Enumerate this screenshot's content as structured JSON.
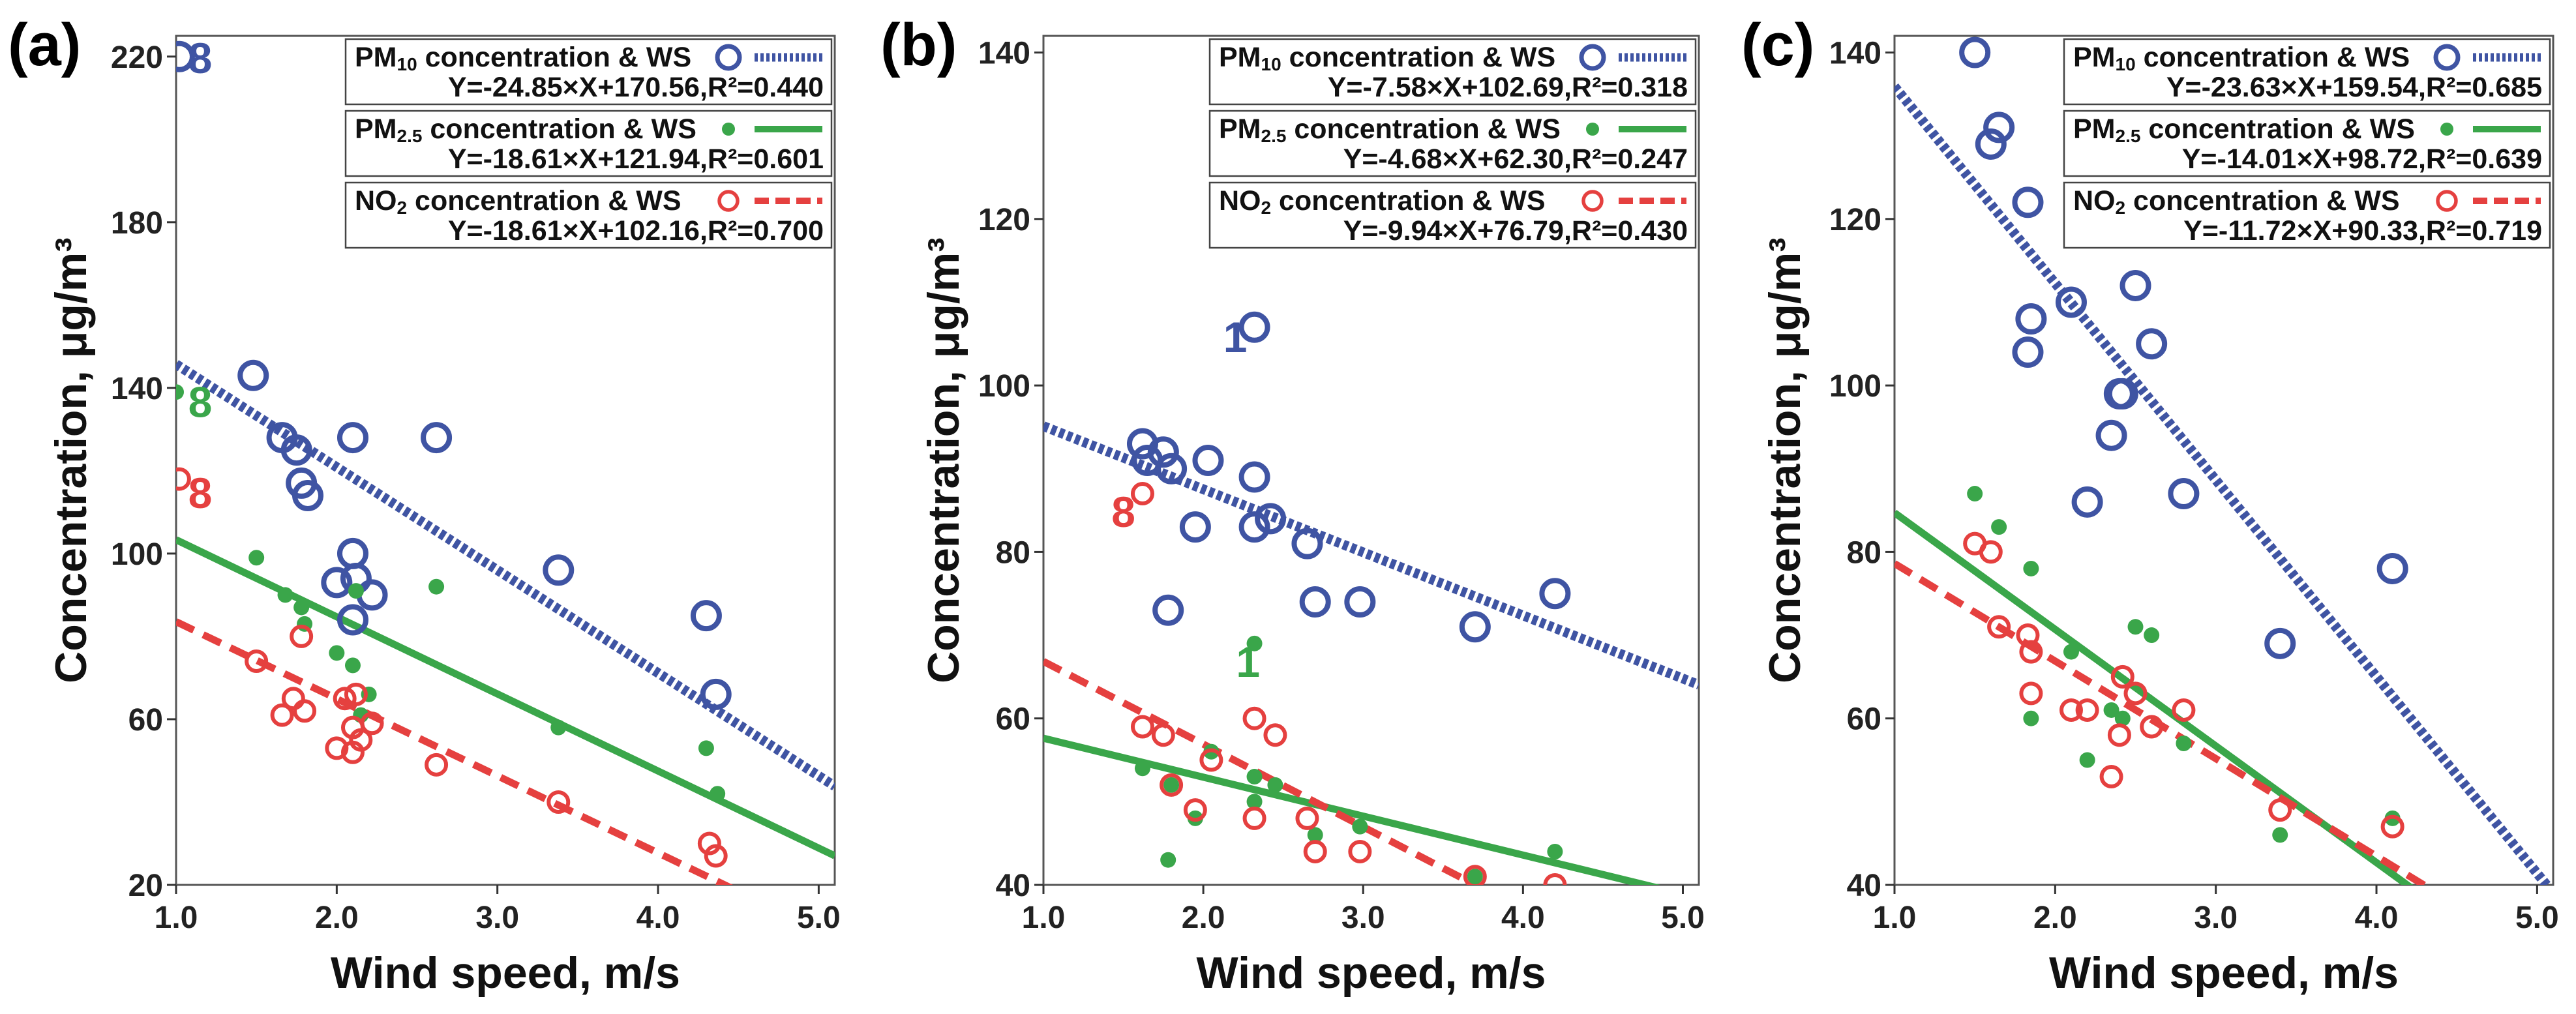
{
  "chart_data": [
    {
      "type": "scatter",
      "panel_label": "(a)",
      "xlabel": "Wind speed, m/s",
      "ylabel": "Concentration, μg/m³",
      "xlim": [
        1.0,
        5.1
      ],
      "ylim": [
        20,
        225
      ],
      "xticks": [
        1.0,
        2.0,
        3.0,
        4.0,
        5.0
      ],
      "xtick_labels": [
        "1.0",
        "2.0",
        "3.0",
        "4.0",
        "5.0"
      ],
      "yticks": [
        20,
        60,
        100,
        140,
        180,
        220
      ],
      "ytick_labels": [
        "20",
        "60",
        "100",
        "140",
        "180",
        "220"
      ],
      "grid": false,
      "legend_position": "top-right",
      "series": [
        {
          "name": "PM10",
          "legend_prefix": "PM",
          "legend_sub": "10",
          "legend_suffix": " concentration & WS",
          "equation": "Y=-24.85×X+170.56,R²=0.440",
          "marker": "open-circle",
          "line_style": "dotted",
          "color": "#3f54a3",
          "fit": {
            "slope": -24.85,
            "intercept": 170.56
          },
          "points": [
            [
              1.02,
              220
            ],
            [
              1.48,
              143
            ],
            [
              1.66,
              128
            ],
            [
              1.75,
              125
            ],
            [
              1.78,
              117
            ],
            [
              1.82,
              114
            ],
            [
              2.0,
              93
            ],
            [
              2.1,
              128
            ],
            [
              2.1,
              100
            ],
            [
              2.12,
              94
            ],
            [
              2.1,
              84
            ],
            [
              2.22,
              90
            ],
            [
              2.62,
              128
            ],
            [
              3.38,
              96
            ],
            [
              4.3,
              85
            ],
            [
              4.36,
              66
            ]
          ]
        },
        {
          "name": "PM2.5",
          "legend_prefix": "PM",
          "legend_sub": "2.5",
          "legend_suffix": " concentration & WS",
          "equation": "Y=-18.61×X+121.94,R²=0.601",
          "marker": "dot",
          "line_style": "solid",
          "color": "#3aa64a",
          "fit": {
            "slope": -18.61,
            "intercept": 121.94
          },
          "points": [
            [
              1.0,
              139
            ],
            [
              1.5,
              99
            ],
            [
              1.68,
              90
            ],
            [
              1.78,
              87
            ],
            [
              1.8,
              83
            ],
            [
              2.0,
              76
            ],
            [
              2.1,
              73
            ],
            [
              2.12,
              91
            ],
            [
              2.15,
              61
            ],
            [
              2.2,
              66
            ],
            [
              2.62,
              92
            ],
            [
              3.38,
              58
            ],
            [
              4.3,
              53
            ],
            [
              4.37,
              42
            ]
          ]
        },
        {
          "name": "NO2",
          "legend_prefix": "NO",
          "legend_sub": "2",
          "legend_suffix": " concentration & WS",
          "equation": "Y=-18.61×X+102.16,R²=0.700",
          "marker": "open-circle-small",
          "line_style": "dashed",
          "color": "#e5403f",
          "fit": {
            "slope": -18.61,
            "intercept": 102.16
          },
          "points": [
            [
              1.02,
              118
            ],
            [
              1.5,
              74
            ],
            [
              1.66,
              61
            ],
            [
              1.73,
              65
            ],
            [
              1.78,
              80
            ],
            [
              1.8,
              62
            ],
            [
              2.0,
              53
            ],
            [
              2.05,
              65
            ],
            [
              2.1,
              58
            ],
            [
              2.1,
              52
            ],
            [
              2.12,
              66
            ],
            [
              2.15,
              55
            ],
            [
              2.22,
              59
            ],
            [
              2.62,
              49
            ],
            [
              3.38,
              40
            ],
            [
              4.32,
              30
            ],
            [
              4.36,
              27
            ]
          ]
        }
      ],
      "annotations": [
        {
          "text": "8",
          "x": 1.15,
          "y": 216,
          "color": "#3f54a3"
        },
        {
          "text": "8",
          "x": 1.15,
          "y": 133,
          "color": "#3aa64a"
        },
        {
          "text": "8",
          "x": 1.15,
          "y": 111,
          "color": "#e5403f"
        }
      ]
    },
    {
      "type": "scatter",
      "panel_label": "(b)",
      "xlabel": "Wind speed, m/s",
      "ylabel": "Concentration, μg/m³",
      "xlim": [
        1.0,
        5.1
      ],
      "ylim": [
        40,
        142
      ],
      "xticks": [
        1.0,
        2.0,
        3.0,
        4.0,
        5.0
      ],
      "xtick_labels": [
        "1.0",
        "2.0",
        "3.0",
        "4.0",
        "5.0"
      ],
      "yticks": [
        40,
        60,
        80,
        100,
        120,
        140
      ],
      "ytick_labels": [
        "40",
        "60",
        "80",
        "100",
        "120",
        "140"
      ],
      "grid": false,
      "legend_position": "top-right",
      "series": [
        {
          "name": "PM10",
          "legend_prefix": "PM",
          "legend_sub": "10",
          "legend_suffix": " concentration & WS",
          "equation": "Y=-7.58×X+102.69,R²=0.318",
          "marker": "open-circle",
          "line_style": "dotted",
          "color": "#3f54a3",
          "fit": {
            "slope": -7.58,
            "intercept": 102.69
          },
          "points": [
            [
              1.62,
              93
            ],
            [
              1.65,
              91
            ],
            [
              1.75,
              92
            ],
            [
              1.8,
              90
            ],
            [
              1.78,
              73
            ],
            [
              1.95,
              83
            ],
            [
              2.03,
              91
            ],
            [
              2.32,
              107
            ],
            [
              2.32,
              89
            ],
            [
              2.32,
              83
            ],
            [
              2.42,
              84
            ],
            [
              2.65,
              81
            ],
            [
              2.7,
              74
            ],
            [
              2.98,
              74
            ],
            [
              3.7,
              71
            ],
            [
              4.2,
              75
            ]
          ]
        },
        {
          "name": "PM2.5",
          "legend_prefix": "PM",
          "legend_sub": "2.5",
          "legend_suffix": " concentration & WS",
          "equation": "Y=-4.68×X+62.30,R²=0.247",
          "marker": "dot",
          "line_style": "solid",
          "color": "#3aa64a",
          "fit": {
            "slope": -4.68,
            "intercept": 62.3
          },
          "points": [
            [
              1.62,
              54
            ],
            [
              1.78,
              43
            ],
            [
              1.8,
              52
            ],
            [
              1.95,
              48
            ],
            [
              2.05,
              56
            ],
            [
              2.32,
              69
            ],
            [
              2.32,
              53
            ],
            [
              2.32,
              50
            ],
            [
              2.45,
              52
            ],
            [
              2.7,
              46
            ],
            [
              2.98,
              47
            ],
            [
              3.7,
              41
            ],
            [
              4.2,
              44
            ]
          ]
        },
        {
          "name": "NO2",
          "legend_prefix": "NO",
          "legend_sub": "2",
          "legend_suffix": " concentration & WS",
          "equation": "Y=-9.94×X+76.79,R²=0.430",
          "marker": "open-circle-small",
          "line_style": "dashed",
          "color": "#e5403f",
          "fit": {
            "slope": -9.94,
            "intercept": 76.79
          },
          "points": [
            [
              1.62,
              87
            ],
            [
              1.62,
              59
            ],
            [
              1.75,
              58
            ],
            [
              1.8,
              52
            ],
            [
              1.95,
              49
            ],
            [
              2.05,
              55
            ],
            [
              2.32,
              60
            ],
            [
              2.32,
              48
            ],
            [
              2.45,
              58
            ],
            [
              2.65,
              48
            ],
            [
              2.7,
              44
            ],
            [
              2.98,
              44
            ],
            [
              3.7,
              41
            ],
            [
              4.2,
              40
            ]
          ]
        }
      ],
      "annotations": [
        {
          "text": "1",
          "x": 2.2,
          "y": 104,
          "color": "#3f54a3"
        },
        {
          "text": "8",
          "x": 1.5,
          "y": 83,
          "color": "#e5403f"
        },
        {
          "text": "1",
          "x": 2.28,
          "y": 65,
          "color": "#3aa64a"
        }
      ]
    },
    {
      "type": "scatter",
      "panel_label": "(c)",
      "xlabel": "Wind speed, m/s",
      "ylabel": "Concentration, μg/m³",
      "xlim": [
        1.0,
        5.1
      ],
      "ylim": [
        40,
        142
      ],
      "xticks": [
        1.0,
        2.0,
        3.0,
        4.0,
        5.0
      ],
      "xtick_labels": [
        "1.0",
        "2.0",
        "3.0",
        "4.0",
        "5.0"
      ],
      "yticks": [
        40,
        60,
        80,
        100,
        120,
        140
      ],
      "ytick_labels": [
        "40",
        "60",
        "80",
        "100",
        "120",
        "140"
      ],
      "grid": false,
      "legend_position": "top-right",
      "series": [
        {
          "name": "PM10",
          "legend_prefix": "PM",
          "legend_sub": "10",
          "legend_suffix": " concentration & WS",
          "equation": "Y=-23.63×X+159.54,R²=0.685",
          "marker": "open-circle",
          "line_style": "dotted",
          "color": "#3f54a3",
          "fit": {
            "slope": -23.63,
            "intercept": 159.54
          },
          "points": [
            [
              1.5,
              140
            ],
            [
              1.6,
              129
            ],
            [
              1.65,
              131
            ],
            [
              1.83,
              122
            ],
            [
              1.83,
              104
            ],
            [
              1.85,
              108
            ],
            [
              2.1,
              110
            ],
            [
              2.2,
              86
            ],
            [
              2.35,
              94
            ],
            [
              2.4,
              99
            ],
            [
              2.42,
              99
            ],
            [
              2.5,
              112
            ],
            [
              2.6,
              105
            ],
            [
              2.8,
              87
            ],
            [
              3.4,
              69
            ],
            [
              4.1,
              78
            ]
          ]
        },
        {
          "name": "PM2.5",
          "legend_prefix": "PM",
          "legend_sub": "2.5",
          "legend_suffix": " concentration & WS",
          "equation": "Y=-14.01×X+98.72,R²=0.639",
          "marker": "dot",
          "line_style": "solid",
          "color": "#3aa64a",
          "fit": {
            "slope": -14.01,
            "intercept": 98.72
          },
          "points": [
            [
              1.5,
              87
            ],
            [
              1.65,
              83
            ],
            [
              1.85,
              78
            ],
            [
              1.85,
              60
            ],
            [
              2.1,
              68
            ],
            [
              2.2,
              55
            ],
            [
              2.35,
              61
            ],
            [
              2.42,
              60
            ],
            [
              2.5,
              71
            ],
            [
              2.6,
              70
            ],
            [
              2.8,
              57
            ],
            [
              3.4,
              46
            ],
            [
              4.1,
              48
            ]
          ]
        },
        {
          "name": "NO2",
          "legend_prefix": "NO",
          "legend_sub": "2",
          "legend_suffix": " concentration & WS",
          "equation": "Y=-11.72×X+90.33,R²=0.719",
          "marker": "open-circle-small",
          "line_style": "dashed",
          "color": "#e5403f",
          "fit": {
            "slope": -11.72,
            "intercept": 90.33
          },
          "points": [
            [
              1.5,
              81
            ],
            [
              1.6,
              80
            ],
            [
              1.65,
              71
            ],
            [
              1.83,
              70
            ],
            [
              1.85,
              68
            ],
            [
              1.85,
              63
            ],
            [
              2.1,
              61
            ],
            [
              2.2,
              61
            ],
            [
              2.35,
              53
            ],
            [
              2.4,
              58
            ],
            [
              2.42,
              65
            ],
            [
              2.5,
              63
            ],
            [
              2.6,
              59
            ],
            [
              2.8,
              61
            ],
            [
              3.4,
              49
            ],
            [
              4.1,
              47
            ]
          ]
        }
      ],
      "annotations": []
    }
  ]
}
